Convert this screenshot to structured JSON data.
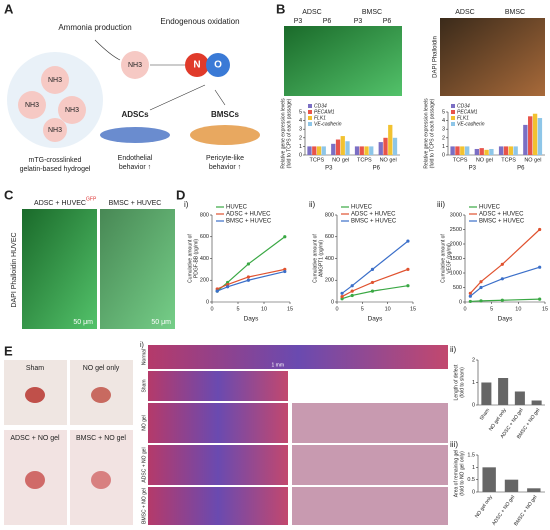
{
  "panel_labels": [
    "A",
    "B",
    "C",
    "D",
    "E"
  ],
  "a": {
    "ammonia": "Ammonia production",
    "oxidation": "Endogenous oxidation",
    "nh3": [
      "NH3",
      "NH3",
      "NH3",
      "NH3",
      "NH3"
    ],
    "no": [
      "N",
      "O"
    ],
    "adscs": "ADSCs",
    "bmscs": "BMSCs",
    "endothelial": [
      "Endothelial",
      "behavior ↑"
    ],
    "pericyte": [
      "Pericyte-like",
      "behavior ↑"
    ],
    "hydrogel": [
      "mTG-crosslinked",
      "gelatin-based hydrogel"
    ]
  },
  "b": {
    "cells": [
      "ADSC",
      "BMSC"
    ],
    "passages": [
      "P3",
      "P6",
      "P3",
      "P6"
    ],
    "cells_right": [
      "ADSC",
      "BMSC"
    ],
    "stain": "DAPI Phalloidin"
  },
  "c": {
    "titles": [
      "ADSC + HUVEC",
      "BMSC + HUVEC"
    ],
    "sup": "GFP",
    "stain": "DAPI Phalloidin HUVEC",
    "scale": [
      "50 μm",
      "50 μm"
    ]
  },
  "e": {
    "photos": [
      "Sham",
      "NO gel only",
      "ADSC + NO gel",
      "BMSC + NO gel"
    ],
    "sub": "i)",
    "rows": [
      "Normal",
      "Sham",
      "NO gel",
      "ADSC + NO gel",
      "BMSC + NO gel"
    ],
    "scale": "1 mm"
  },
  "chart_data": [
    {
      "type": "bar",
      "categories": [
        "TCPS",
        "NO gel",
        "TCPS",
        "NO gel"
      ],
      "groups": [
        "P3",
        "P6"
      ],
      "series": [
        {
          "name": "CD34",
          "color": "#7b6fc4",
          "values": [
            1,
            1.3,
            1,
            1.5
          ]
        },
        {
          "name": "PECAM1",
          "color": "#e8544a",
          "values": [
            1,
            1.8,
            1,
            2
          ]
        },
        {
          "name": "FLK1",
          "color": "#f2c230",
          "values": [
            1,
            2.2,
            1,
            3.5
          ]
        },
        {
          "name": "VE-cadherin",
          "color": "#8ec6e8",
          "values": [
            1,
            1.6,
            1,
            2
          ]
        }
      ],
      "ylim": [
        0,
        5
      ],
      "yticks": [
        0,
        1,
        2,
        3,
        4,
        5
      ],
      "ylabel": [
        "Relative gene expression levels",
        "(fold to TCPS of each passage)"
      ]
    },
    {
      "type": "bar",
      "categories": [
        "TCPS",
        "NO gel",
        "TCPS",
        "NO gel"
      ],
      "groups": [
        "P3",
        "P6"
      ],
      "series": [
        {
          "name": "CD34",
          "color": "#7b6fc4",
          "values": [
            1,
            0.7,
            1,
            3.5
          ]
        },
        {
          "name": "PECAM1",
          "color": "#e8544a",
          "values": [
            1,
            0.8,
            1,
            4.5
          ]
        },
        {
          "name": "FLK1",
          "color": "#f2c230",
          "values": [
            1,
            0.6,
            1,
            4.8
          ]
        },
        {
          "name": "VE-cadherin",
          "color": "#8ec6e8",
          "values": [
            1,
            0.7,
            1,
            4.3
          ]
        }
      ],
      "ylim": [
        0,
        5
      ],
      "yticks": [
        0,
        1,
        2,
        3,
        4,
        5
      ],
      "ylabel": [
        "Relative gene expression levels",
        "(fold to TCPS of each passage)"
      ]
    },
    {
      "type": "line",
      "label": "i)",
      "x": [
        1,
        3,
        7,
        14
      ],
      "series": [
        {
          "name": "HUVEC",
          "color": "#3aa844",
          "values": [
            100,
            180,
            350,
            600
          ]
        },
        {
          "name": "ADSC + HUVEC",
          "color": "#e0522f",
          "values": [
            120,
            160,
            230,
            300
          ]
        },
        {
          "name": "BMSC + HUVEC",
          "color": "#3b6fc9",
          "values": [
            100,
            140,
            200,
            280
          ]
        }
      ],
      "xlim": [
        0,
        15
      ],
      "xticks": [
        0,
        5,
        10,
        15
      ],
      "ylim": [
        0,
        800
      ],
      "yticks": [
        0,
        200,
        400,
        600,
        800
      ],
      "xlabel": "Days",
      "ylabel": [
        "Cumulative amount of",
        "PDGF-BB (pg/ml)"
      ]
    },
    {
      "type": "line",
      "label": "ii)",
      "x": [
        1,
        3,
        7,
        14
      ],
      "series": [
        {
          "name": "HUVEC",
          "color": "#3aa844",
          "values": [
            30,
            60,
            100,
            150
          ]
        },
        {
          "name": "ADSC + HUVEC",
          "color": "#e0522f",
          "values": [
            50,
            100,
            180,
            300
          ]
        },
        {
          "name": "BMSC + HUVEC",
          "color": "#3b6fc9",
          "values": [
            80,
            150,
            300,
            560
          ]
        }
      ],
      "xlim": [
        0,
        15
      ],
      "xticks": [
        0,
        5,
        10,
        15
      ],
      "ylim": [
        0,
        800
      ],
      "yticks": [
        0,
        200,
        400,
        600,
        800
      ],
      "xlabel": "Days",
      "ylabel": [
        "Cumulative amount of",
        "ANGPT1 (pg/ml)"
      ]
    },
    {
      "type": "line",
      "label": "iii)",
      "x": [
        1,
        3,
        7,
        14
      ],
      "series": [
        {
          "name": "HUVEC",
          "color": "#3aa844",
          "values": [
            20,
            40,
            60,
            100
          ]
        },
        {
          "name": "ADSC + HUVEC",
          "color": "#e0522f",
          "values": [
            300,
            700,
            1300,
            2500
          ]
        },
        {
          "name": "BMSC + HUVEC",
          "color": "#3b6fc9",
          "values": [
            200,
            500,
            800,
            1200
          ]
        }
      ],
      "xlim": [
        0,
        15
      ],
      "xticks": [
        0,
        5,
        10,
        15
      ],
      "ylim": [
        0,
        3000
      ],
      "yticks": [
        0,
        500,
        1000,
        1500,
        2000,
        2500,
        3000
      ],
      "xlabel": "Days",
      "ylabel": [
        "Cumulative amount of",
        "VEGF (pg/ml)"
      ]
    },
    {
      "type": "bar",
      "label": "ii)",
      "categories": [
        "Sham",
        "NO gel only",
        "ADSC + NO gel",
        "BMSC + NO gel"
      ],
      "values": [
        1,
        1.2,
        0.6,
        0.2
      ],
      "color": "#666666",
      "ylim": [
        0,
        2
      ],
      "yticks": [
        0,
        1,
        2
      ],
      "ylabel": [
        "Length of defect",
        "(fold to sham)"
      ]
    },
    {
      "type": "bar",
      "label": "iii)",
      "categories": [
        "NO gel only",
        "ADSC + NO gel",
        "BMSC + NO gel"
      ],
      "values": [
        1,
        0.5,
        0.15
      ],
      "color": "#666666",
      "ylim": [
        0,
        1.5
      ],
      "yticks": [
        0,
        0.5,
        1,
        1.5
      ],
      "ylabel": [
        "Area of remaining gel",
        "(fold to NO gel only)"
      ]
    }
  ]
}
